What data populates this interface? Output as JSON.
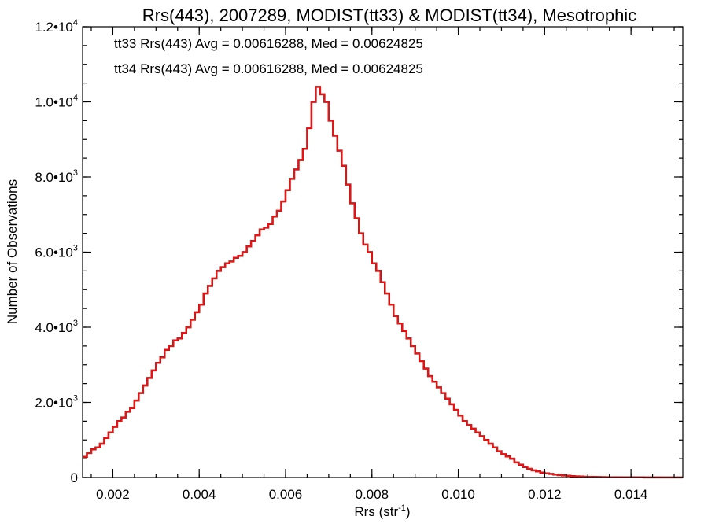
{
  "chart_data": {
    "type": "line",
    "step": true,
    "title": "Rrs(443), 2007289, MODIST(tt33) & MODIST(tt34), Mesotrophic",
    "xlabel": "Rrs (str",
    "xlabel_sup": "-1",
    "xlabel_suffix": ")",
    "ylabel": "Number of Observations",
    "xlim": [
      0.0013,
      0.0152
    ],
    "ylim": [
      0,
      12000
    ],
    "grid": false,
    "x_ticks": [
      {
        "value": 0.002,
        "label": "0.002"
      },
      {
        "value": 0.004,
        "label": "0.004"
      },
      {
        "value": 0.006,
        "label": "0.006"
      },
      {
        "value": 0.008,
        "label": "0.008"
      },
      {
        "value": 0.01,
        "label": "0.010"
      },
      {
        "value": 0.012,
        "label": "0.012"
      },
      {
        "value": 0.014,
        "label": "0.014"
      }
    ],
    "y_ticks": [
      {
        "value": 0,
        "mantissa": "0",
        "exp": ""
      },
      {
        "value": 2000,
        "mantissa": "2.0•10",
        "exp": "3"
      },
      {
        "value": 4000,
        "mantissa": "4.0•10",
        "exp": "3"
      },
      {
        "value": 6000,
        "mantissa": "6.0•10",
        "exp": "3"
      },
      {
        "value": 8000,
        "mantissa": "8.0•10",
        "exp": "3"
      },
      {
        "value": 10000,
        "mantissa": "1.0•10",
        "exp": "4"
      },
      {
        "value": 12000,
        "mantissa": "1.2•10",
        "exp": "4"
      }
    ],
    "legend": [
      {
        "text": "tt33 Rrs(443) Avg = 0.00616288, Med = 0.00624825",
        "color": "#000000"
      },
      {
        "text": "tt34 Rrs(443) Avg = 0.00616288, Med = 0.00624825",
        "color": "#ee1111"
      }
    ],
    "legend_placement": "top-left",
    "series": [
      {
        "name": "tt33",
        "color": "#000000",
        "x": [
          0.0013,
          0.0014,
          0.0015,
          0.0016,
          0.0017,
          0.0018,
          0.0019,
          0.002,
          0.0021,
          0.0022,
          0.0023,
          0.0024,
          0.0025,
          0.0026,
          0.0027,
          0.0028,
          0.0029,
          0.003,
          0.0031,
          0.0032,
          0.0033,
          0.0034,
          0.0035,
          0.0036,
          0.0037,
          0.0038,
          0.0039,
          0.004,
          0.0041,
          0.0042,
          0.0043,
          0.0044,
          0.0045,
          0.0046,
          0.0047,
          0.0048,
          0.0049,
          0.005,
          0.0051,
          0.0052,
          0.0053,
          0.0054,
          0.0055,
          0.0056,
          0.0057,
          0.0058,
          0.0059,
          0.006,
          0.0061,
          0.0062,
          0.0063,
          0.0064,
          0.0065,
          0.0066,
          0.0067,
          0.0068,
          0.0069,
          0.007,
          0.0071,
          0.0072,
          0.0073,
          0.0074,
          0.0075,
          0.0076,
          0.0077,
          0.0078,
          0.0079,
          0.008,
          0.0081,
          0.0082,
          0.0083,
          0.0084,
          0.0085,
          0.0086,
          0.0087,
          0.0088,
          0.0089,
          0.009,
          0.0091,
          0.0092,
          0.0093,
          0.0094,
          0.0095,
          0.0096,
          0.0097,
          0.0098,
          0.0099,
          0.01,
          0.0101,
          0.0102,
          0.0103,
          0.0104,
          0.0105,
          0.0106,
          0.0107,
          0.0108,
          0.0109,
          0.011,
          0.0111,
          0.0112,
          0.0113,
          0.0114,
          0.0115,
          0.0116,
          0.0117,
          0.0118,
          0.0119,
          0.012,
          0.0121,
          0.0122,
          0.0123,
          0.0124,
          0.0125,
          0.0126,
          0.0127,
          0.0128,
          0.0129,
          0.013,
          0.0131,
          0.0132,
          0.0133,
          0.0134,
          0.0135,
          0.0136,
          0.0137,
          0.0138,
          0.0139,
          0.014,
          0.0141,
          0.0142,
          0.0143,
          0.0144,
          0.0145,
          0.0146,
          0.0147,
          0.0148,
          0.0149,
          0.015,
          0.0151,
          0.0152
        ],
        "y": [
          550,
          650,
          750,
          800,
          900,
          1050,
          1200,
          1350,
          1500,
          1600,
          1750,
          1850,
          2050,
          2250,
          2450,
          2650,
          2850,
          3050,
          3200,
          3400,
          3500,
          3650,
          3700,
          3850,
          4000,
          4200,
          4400,
          4600,
          4900,
          5100,
          5300,
          5500,
          5600,
          5700,
          5750,
          5850,
          5900,
          6000,
          6150,
          6300,
          6450,
          6600,
          6650,
          6750,
          6950,
          7100,
          7350,
          7650,
          7950,
          8200,
          8450,
          8750,
          9300,
          10000,
          10400,
          10200,
          10000,
          9500,
          9100,
          8700,
          8300,
          7800,
          7300,
          6900,
          6500,
          6200,
          6000,
          5700,
          5500,
          5200,
          4900,
          4600,
          4300,
          4100,
          3900,
          3700,
          3500,
          3300,
          3100,
          2900,
          2700,
          2550,
          2400,
          2250,
          2100,
          1950,
          1800,
          1650,
          1500,
          1400,
          1300,
          1200,
          1100,
          1000,
          900,
          800,
          700,
          620,
          560,
          500,
          400,
          340,
          280,
          230,
          190,
          160,
          130,
          110,
          95,
          80,
          65,
          55,
          45,
          35,
          30,
          25,
          20,
          18,
          15,
          12,
          10,
          8,
          6,
          5,
          5,
          4,
          4,
          3,
          3,
          3,
          2,
          2,
          2,
          2,
          1,
          1,
          1,
          1,
          1,
          1
        ]
      },
      {
        "name": "tt34",
        "color": "#ee1111",
        "x": [
          0.0013,
          0.0014,
          0.0015,
          0.0016,
          0.0017,
          0.0018,
          0.0019,
          0.002,
          0.0021,
          0.0022,
          0.0023,
          0.0024,
          0.0025,
          0.0026,
          0.0027,
          0.0028,
          0.0029,
          0.003,
          0.0031,
          0.0032,
          0.0033,
          0.0034,
          0.0035,
          0.0036,
          0.0037,
          0.0038,
          0.0039,
          0.004,
          0.0041,
          0.0042,
          0.0043,
          0.0044,
          0.0045,
          0.0046,
          0.0047,
          0.0048,
          0.0049,
          0.005,
          0.0051,
          0.0052,
          0.0053,
          0.0054,
          0.0055,
          0.0056,
          0.0057,
          0.0058,
          0.0059,
          0.006,
          0.0061,
          0.0062,
          0.0063,
          0.0064,
          0.0065,
          0.0066,
          0.0067,
          0.0068,
          0.0069,
          0.007,
          0.0071,
          0.0072,
          0.0073,
          0.0074,
          0.0075,
          0.0076,
          0.0077,
          0.0078,
          0.0079,
          0.008,
          0.0081,
          0.0082,
          0.0083,
          0.0084,
          0.0085,
          0.0086,
          0.0087,
          0.0088,
          0.0089,
          0.009,
          0.0091,
          0.0092,
          0.0093,
          0.0094,
          0.0095,
          0.0096,
          0.0097,
          0.0098,
          0.0099,
          0.01,
          0.0101,
          0.0102,
          0.0103,
          0.0104,
          0.0105,
          0.0106,
          0.0107,
          0.0108,
          0.0109,
          0.011,
          0.0111,
          0.0112,
          0.0113,
          0.0114,
          0.0115,
          0.0116,
          0.0117,
          0.0118,
          0.0119,
          0.012,
          0.0121,
          0.0122,
          0.0123,
          0.0124,
          0.0125,
          0.0126,
          0.0127,
          0.0128,
          0.0129,
          0.013,
          0.0131,
          0.0132,
          0.0133,
          0.0134,
          0.0135,
          0.0136,
          0.0137,
          0.0138,
          0.0139,
          0.014,
          0.0141,
          0.0142,
          0.0143,
          0.0144,
          0.0145,
          0.0146,
          0.0147,
          0.0148,
          0.0149,
          0.015,
          0.0151,
          0.0152
        ],
        "y": [
          550,
          650,
          750,
          800,
          900,
          1050,
          1200,
          1350,
          1500,
          1600,
          1750,
          1850,
          2050,
          2250,
          2450,
          2650,
          2850,
          3050,
          3200,
          3400,
          3500,
          3650,
          3700,
          3850,
          4000,
          4200,
          4400,
          4600,
          4900,
          5100,
          5300,
          5500,
          5600,
          5700,
          5750,
          5850,
          5900,
          6000,
          6150,
          6300,
          6450,
          6600,
          6650,
          6750,
          6950,
          7100,
          7350,
          7650,
          7950,
          8200,
          8450,
          8750,
          9300,
          10000,
          10400,
          10200,
          10000,
          9500,
          9100,
          8700,
          8300,
          7800,
          7300,
          6900,
          6500,
          6200,
          6000,
          5700,
          5500,
          5200,
          4900,
          4600,
          4300,
          4100,
          3900,
          3700,
          3500,
          3300,
          3100,
          2900,
          2700,
          2550,
          2400,
          2250,
          2100,
          1950,
          1800,
          1650,
          1500,
          1400,
          1300,
          1200,
          1100,
          1000,
          900,
          800,
          700,
          620,
          560,
          500,
          400,
          340,
          280,
          230,
          190,
          160,
          130,
          110,
          95,
          80,
          65,
          55,
          45,
          35,
          30,
          25,
          20,
          18,
          15,
          12,
          10,
          8,
          6,
          5,
          5,
          4,
          4,
          3,
          3,
          3,
          2,
          2,
          2,
          2,
          1,
          1,
          1,
          1,
          1,
          1
        ]
      }
    ]
  }
}
